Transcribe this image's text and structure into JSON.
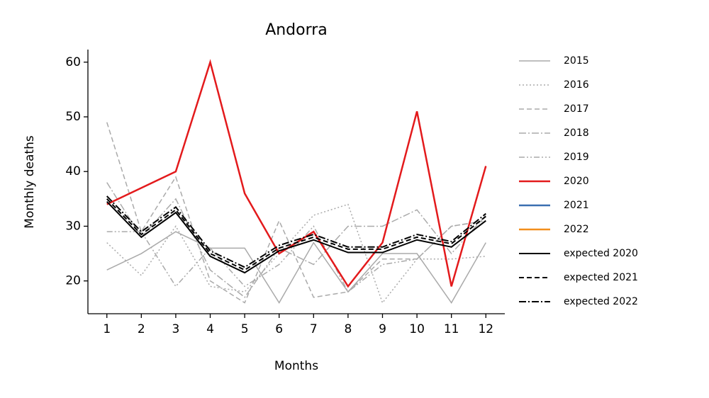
{
  "chart_data": {
    "type": "line",
    "title": "Andorra",
    "xlabel": "Months",
    "ylabel": "Monthly deaths",
    "x": [
      1,
      2,
      3,
      4,
      5,
      6,
      7,
      8,
      9,
      10,
      11,
      12
    ],
    "xlim": [
      0.45,
      12.55
    ],
    "xticks": [
      1,
      2,
      3,
      4,
      5,
      6,
      7,
      8,
      9,
      10,
      11,
      12
    ],
    "ylim": [
      14,
      62.3
    ],
    "yticks": [
      20,
      30,
      40,
      50,
      60
    ],
    "legend": "outside-right",
    "series": [
      {
        "name": "2015",
        "color": "#aaaaaa",
        "dash": "solid",
        "width": 1.5,
        "values": [
          22,
          25,
          29,
          26,
          26,
          16,
          27,
          18,
          25,
          25,
          16,
          27
        ]
      },
      {
        "name": "2016",
        "color": "#aaaaaa",
        "dash": "dotted",
        "width": 1.5,
        "values": [
          27,
          21,
          30,
          19,
          18,
          25,
          32,
          34,
          16,
          24,
          24,
          24.5
        ]
      },
      {
        "name": "2017",
        "color": "#aaaaaa",
        "dash": "dashed",
        "width": 1.5,
        "values": [
          49,
          29,
          39,
          20,
          16,
          31,
          17,
          18,
          24,
          24,
          30,
          31
        ]
      },
      {
        "name": "2018",
        "color": "#aaaaaa",
        "dash": "dashdot",
        "width": 1.5,
        "values": [
          38,
          28,
          35,
          22,
          17,
          26,
          23,
          30,
          30,
          33,
          25,
          32
        ]
      },
      {
        "name": "2019",
        "color": "#aaaaaa",
        "dash": "dashdotdot",
        "width": 1.5,
        "values": [
          29,
          29,
          19,
          26,
          19,
          23,
          30,
          18,
          23,
          24,
          30,
          31
        ]
      },
      {
        "name": "2020",
        "color": "#e31a1c",
        "dash": "solid",
        "width": 2.5,
        "values": [
          34,
          37,
          40,
          60,
          36,
          25,
          29,
          19,
          27,
          51,
          19,
          41
        ]
      },
      {
        "name": "2021",
        "color": "#3a6fb0",
        "dash": "solid",
        "width": 2.5,
        "values": [
          null,
          null,
          null,
          null,
          null,
          null,
          null,
          null,
          null,
          null,
          null,
          null
        ]
      },
      {
        "name": "2022",
        "color": "#f28e1c",
        "dash": "solid",
        "width": 2.5,
        "values": [
          null,
          null,
          null,
          null,
          null,
          null,
          null,
          null,
          null,
          null,
          null,
          null
        ]
      },
      {
        "name": "expected 2020",
        "color": "#000000",
        "dash": "solid",
        "width": 2,
        "values": [
          34.5,
          28,
          32.5,
          24.5,
          21.5,
          25.5,
          27.5,
          25.2,
          25.2,
          27.5,
          26.2,
          31
        ]
      },
      {
        "name": "expected 2021",
        "color": "#000000",
        "dash": "dashed",
        "width": 2,
        "values": [
          35,
          28.5,
          33,
          25,
          22,
          26,
          28,
          25.8,
          25.8,
          28,
          26.8,
          31.8
        ]
      },
      {
        "name": "expected 2022",
        "color": "#000000",
        "dash": "dashdot",
        "width": 2,
        "values": [
          35.5,
          29,
          33.5,
          25.5,
          22.5,
          26.5,
          28.5,
          26.2,
          26.2,
          28.5,
          27.2,
          32.3
        ]
      }
    ]
  }
}
